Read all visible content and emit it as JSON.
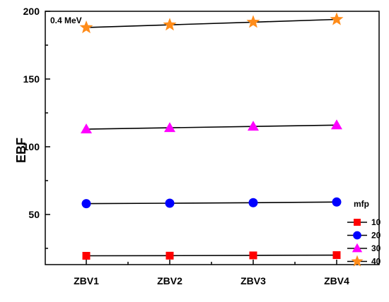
{
  "chart_data": {
    "type": "line",
    "categories": [
      "ZBV1",
      "ZBV2",
      "ZBV3",
      "ZBV4"
    ],
    "series": [
      {
        "name": "10",
        "values": [
          19.5,
          19.6,
          19.8,
          20.0
        ],
        "color": "#ff0000",
        "marker": "square"
      },
      {
        "name": "20",
        "values": [
          58.0,
          58.3,
          58.7,
          59.2
        ],
        "color": "#0000ff",
        "marker": "circle"
      },
      {
        "name": "30",
        "values": [
          113,
          114,
          115,
          116
        ],
        "color": "#ff00ff",
        "marker": "triangle"
      },
      {
        "name": "40",
        "values": [
          188,
          190,
          192,
          194
        ],
        "color": "#ff8c1a",
        "marker": "star"
      }
    ],
    "ylabel": "EBF",
    "xlabel": "",
    "ylim": [
      13,
      200
    ],
    "yticks": [
      50,
      100,
      150,
      200
    ],
    "annotation": "0.4 MeV",
    "legend_title": "mfp",
    "legend_position": "bottom-right",
    "grid": false,
    "line_color": "#000000"
  }
}
